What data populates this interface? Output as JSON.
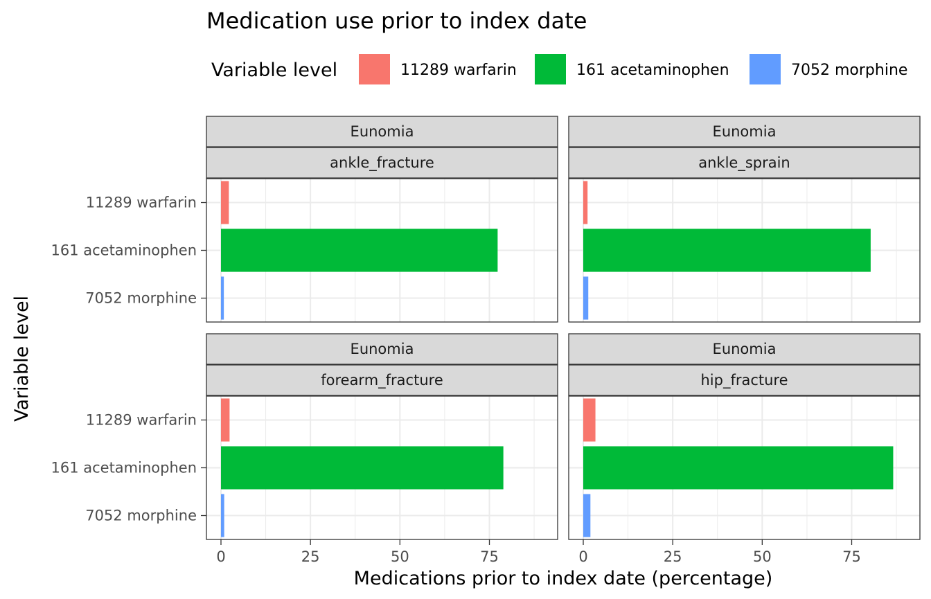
{
  "chart_data": {
    "type": "bar",
    "orientation": "horizontal",
    "title": "Medication use prior to index date",
    "xlabel": "Medications prior to index date (percentage)",
    "ylabel": "Variable level",
    "legend": {
      "title": "Variable level",
      "position": "top",
      "entries": [
        "11289 warfarin",
        "161 acetaminophen",
        "7052 morphine"
      ]
    },
    "colors": {
      "11289 warfarin": "#F8766D",
      "161 acetaminophen": "#00BA38",
      "7052 morphine": "#619CFF"
    },
    "categories": [
      "11289 warfarin",
      "161 acetaminophen",
      "7052 morphine"
    ],
    "xlim": [
      0,
      90
    ],
    "xticks": [
      0,
      25,
      50,
      75
    ],
    "xtick_labels": [
      "0",
      "25",
      "50",
      "75"
    ],
    "grid": true,
    "panels": [
      {
        "strip_top": "Eunomia",
        "strip_bottom": "ankle_fracture",
        "values": [
          2.2,
          77.3,
          0.8
        ]
      },
      {
        "strip_top": "Eunomia",
        "strip_bottom": "ankle_sprain",
        "values": [
          1.2,
          80.3,
          1.4
        ]
      },
      {
        "strip_top": "Eunomia",
        "strip_bottom": "forearm_fracture",
        "values": [
          2.4,
          78.9,
          0.9
        ]
      },
      {
        "strip_top": "Eunomia",
        "strip_bottom": "hip_fracture",
        "values": [
          3.4,
          86.6,
          2.0
        ]
      }
    ]
  }
}
